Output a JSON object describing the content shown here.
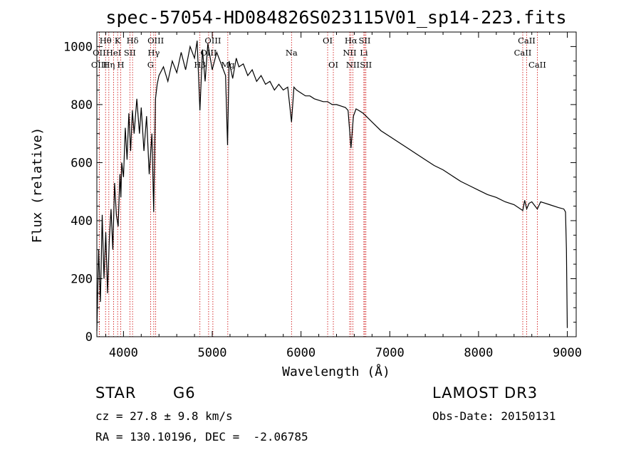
{
  "chart_data": {
    "type": "line",
    "title": "spec-57054-HD084826S023115V01_sp14-223.fits",
    "xlabel": "Wavelength (Å)",
    "ylabel": "Flux (relative)",
    "xlim": [
      3700,
      9100
    ],
    "ylim": [
      0,
      1050
    ],
    "x_ticks": [
      4000,
      5000,
      6000,
      7000,
      8000,
      9000
    ],
    "y_ticks": [
      0,
      200,
      400,
      600,
      800,
      1000
    ],
    "grid": false,
    "series": [
      {
        "name": "flux",
        "x": [
          3700,
          3720,
          3740,
          3760,
          3780,
          3800,
          3820,
          3840,
          3860,
          3880,
          3900,
          3920,
          3940,
          3960,
          3970,
          3980,
          4000,
          4020,
          4040,
          4060,
          4080,
          4100,
          4120,
          4150,
          4180,
          4200,
          4230,
          4260,
          4290,
          4320,
          4340,
          4360,
          4380,
          4400,
          4450,
          4500,
          4550,
          4600,
          4650,
          4700,
          4750,
          4800,
          4830,
          4861,
          4890,
          4920,
          4950,
          5000,
          5050,
          5100,
          5150,
          5172,
          5190,
          5230,
          5270,
          5300,
          5350,
          5400,
          5450,
          5500,
          5550,
          5600,
          5650,
          5700,
          5750,
          5800,
          5850,
          5893,
          5920,
          5950,
          6000,
          6050,
          6100,
          6150,
          6200,
          6250,
          6300,
          6350,
          6400,
          6450,
          6500,
          6530,
          6563,
          6590,
          6620,
          6650,
          6700,
          6750,
          6800,
          6900,
          7000,
          7100,
          7200,
          7300,
          7400,
          7500,
          7600,
          7700,
          7800,
          7900,
          8000,
          8100,
          8200,
          8300,
          8400,
          8498,
          8520,
          8542,
          8570,
          8600,
          8662,
          8700,
          8800,
          8900,
          8960,
          8980,
          8990,
          9000
        ],
        "y": [
          20,
          300,
          120,
          420,
          200,
          360,
          150,
          330,
          440,
          300,
          530,
          420,
          380,
          560,
          480,
          600,
          550,
          720,
          610,
          770,
          640,
          780,
          700,
          820,
          700,
          790,
          640,
          760,
          560,
          700,
          430,
          820,
          870,
          900,
          930,
          880,
          950,
          910,
          980,
          920,
          1000,
          960,
          1020,
          780,
          990,
          880,
          1010,
          920,
          980,
          940,
          900,
          660,
          950,
          890,
          960,
          930,
          940,
          900,
          920,
          880,
          900,
          870,
          880,
          850,
          870,
          850,
          860,
          740,
          860,
          850,
          840,
          830,
          830,
          820,
          815,
          810,
          810,
          800,
          800,
          795,
          790,
          780,
          650,
          760,
          785,
          780,
          770,
          755,
          740,
          710,
          690,
          670,
          650,
          630,
          610,
          590,
          575,
          555,
          535,
          520,
          505,
          490,
          480,
          465,
          455,
          435,
          470,
          440,
          460,
          465,
          440,
          465,
          455,
          445,
          440,
          430,
          300,
          30
        ]
      }
    ],
    "spectral_lines": [
      {
        "label": "Hθ",
        "x": 3798,
        "row": 0
      },
      {
        "label": "OII",
        "x": 3727,
        "row": 1
      },
      {
        "label": "OIII",
        "x": 3727,
        "row": 2
      },
      {
        "label": "HeI",
        "x": 3889,
        "row": 1
      },
      {
        "label": "Hη",
        "x": 3835,
        "row": 2
      },
      {
        "label": "K",
        "x": 3934,
        "row": 0
      },
      {
        "label": "SII",
        "x": 4072,
        "row": 1
      },
      {
        "label": "H",
        "x": 3969,
        "row": 2
      },
      {
        "label": "Hδ",
        "x": 4102,
        "row": 0
      },
      {
        "label": "OIII",
        "x": 4363,
        "row": 0
      },
      {
        "label": "Hγ",
        "x": 4341,
        "row": 1
      },
      {
        "label": "G",
        "x": 4305,
        "row": 2
      },
      {
        "label": "OIII",
        "x": 5007,
        "row": 0
      },
      {
        "label": "OIII",
        "x": 4959,
        "row": 1
      },
      {
        "label": "Hβ",
        "x": 4861,
        "row": 2
      },
      {
        "label": "Mg",
        "x": 5175,
        "row": 2
      },
      {
        "label": "Na",
        "x": 5893,
        "row": 1
      },
      {
        "label": "OI",
        "x": 6300,
        "row": 0
      },
      {
        "label": "OI",
        "x": 6364,
        "row": 2
      },
      {
        "label": "Hα",
        "x": 6563,
        "row": 0
      },
      {
        "label": "NII",
        "x": 6548,
        "row": 1
      },
      {
        "label": "NII",
        "x": 6584,
        "row": 2
      },
      {
        "label": "SII",
        "x": 6717,
        "row": 0
      },
      {
        "label": "Li",
        "x": 6708,
        "row": 1
      },
      {
        "label": "SII",
        "x": 6731,
        "row": 2
      },
      {
        "label": "CaII",
        "x": 8542,
        "row": 0
      },
      {
        "label": "CaII",
        "x": 8498,
        "row": 1
      },
      {
        "label": "CaII",
        "x": 8662,
        "row": 2
      }
    ],
    "line_color": "#000000",
    "marker_color": "#cc0000"
  },
  "info": {
    "object_class": "STAR",
    "subclass": "G6",
    "survey": "LAMOST DR3",
    "redshift": "cz = 27.8 ± 9.8 km/s",
    "obs_date": "Obs-Date: 20150131",
    "coords": "RA = 130.10196, DEC =  -2.06785"
  }
}
